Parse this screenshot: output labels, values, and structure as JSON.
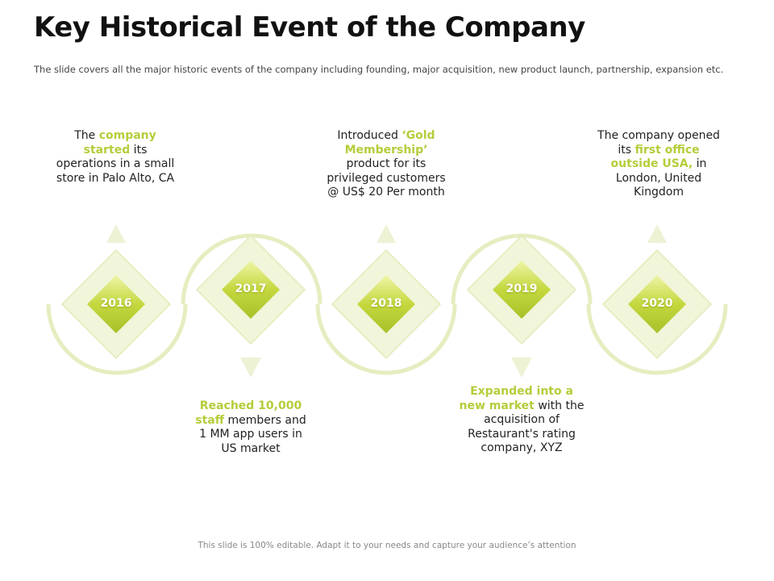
{
  "title": "Key Historical Event of the Company",
  "subtitle": "The slide covers all the major historic events of the company including  founding,  major acquisition,  new product launch,  partnership, expansion etc.",
  "footer": "This slide is 100% editable. Adapt it to your needs and capture your audience’s attention",
  "colors": {
    "accent": "#b6cc3a",
    "light": "#f1f5da",
    "arc": "#e6edc0",
    "diamond": "#c4d83e"
  },
  "events": [
    {
      "year": "2016",
      "t1": "The ",
      "h1": "company started",
      "t2": " its operations in a small store in Palo Alto, CA"
    },
    {
      "year": "2017",
      "h1": "Reached 10,000 staff",
      "t2": " members and 1 MM app users in US market"
    },
    {
      "year": "2018",
      "t1": "Introduced ",
      "h1": "‘Gold Membership’",
      "t2": " product for its privileged customers @ US$ 20 Per month"
    },
    {
      "year": "2019",
      "h1": "Expanded into a new market",
      "t2": " with the acquisition of Restaurant's rating company, XYZ"
    },
    {
      "year": "2020",
      "t1": "The company opened its ",
      "h1": "first office outside USA,",
      "t2": " in London, United Kingdom"
    }
  ]
}
